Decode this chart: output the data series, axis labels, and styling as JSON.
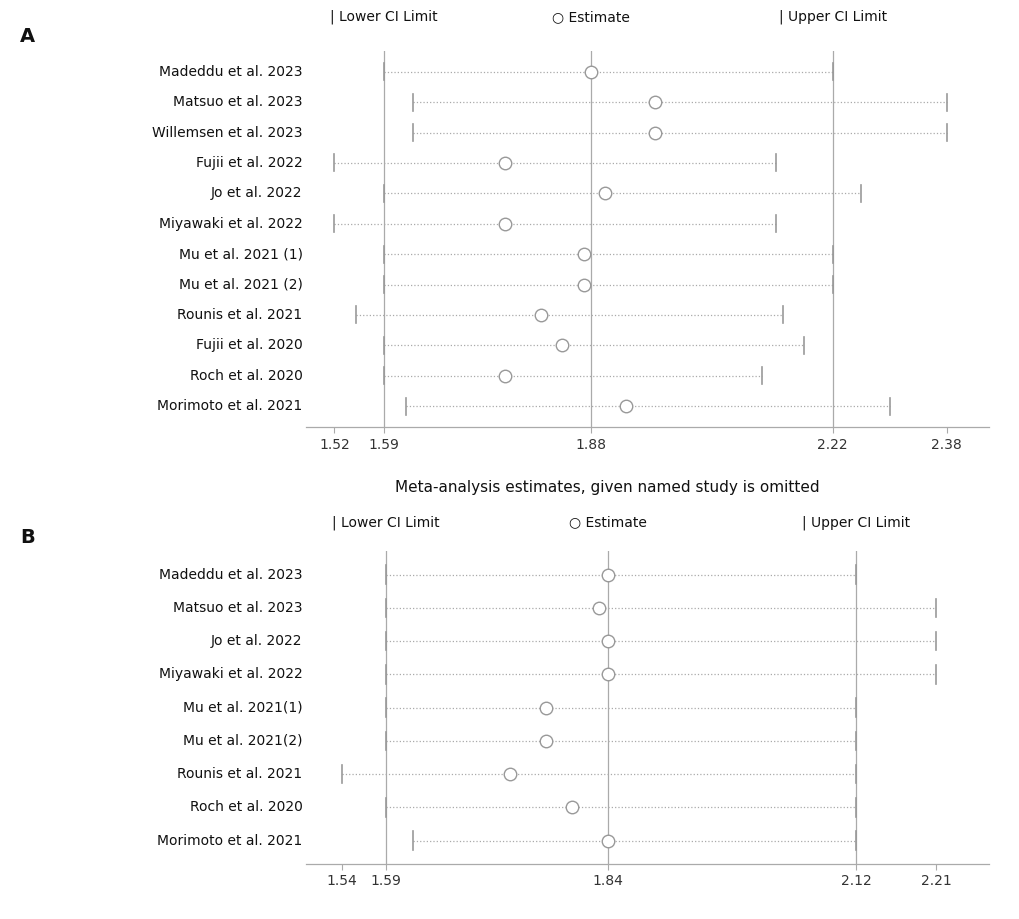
{
  "panel_A": {
    "title": "Meta-analysis estimates, given named study is omitted",
    "studies": [
      "Madeddu et al. 2023",
      "Matsuo et al. 2023",
      "Willemsen et al. 2023",
      "Fujii et al. 2022",
      "Jo et al. 2022",
      "Miyawaki et al. 2022",
      "Mu et al. 2021 (1)",
      "Mu et al. 2021 (2)",
      "Rounis et al. 2021",
      "Fujii et al. 2020",
      "Roch et al. 2020",
      "Morimoto et al. 2021"
    ],
    "lower_ci": [
      1.59,
      1.63,
      1.63,
      1.52,
      1.59,
      1.52,
      1.59,
      1.59,
      1.55,
      1.59,
      1.59,
      1.62
    ],
    "estimate": [
      1.88,
      1.97,
      1.97,
      1.76,
      1.9,
      1.76,
      1.87,
      1.87,
      1.81,
      1.84,
      1.76,
      1.93
    ],
    "upper_ci": [
      2.22,
      2.38,
      2.38,
      2.14,
      2.26,
      2.14,
      2.22,
      2.22,
      2.15,
      2.18,
      2.12,
      2.3
    ],
    "vline_lower": 1.59,
    "vline_estimate": 1.88,
    "vline_upper": 2.22,
    "xlim": [
      1.48,
      2.44
    ],
    "xticks": [
      1.52,
      1.59,
      1.88,
      2.22,
      2.38
    ]
  },
  "panel_B": {
    "title": "Meta-analysis estimates, given named study is omitted",
    "studies": [
      "Madeddu et al. 2023",
      "Matsuo et al. 2023",
      "Jo et al. 2022",
      "Miyawaki et al. 2022",
      "Mu et al. 2021(1)",
      "Mu et al. 2021(2)",
      "Rounis et al. 2021",
      "Roch et al. 2020",
      "Morimoto et al. 2021"
    ],
    "lower_ci": [
      1.59,
      1.59,
      1.59,
      1.59,
      1.59,
      1.59,
      1.54,
      1.59,
      1.62
    ],
    "estimate": [
      1.84,
      1.83,
      1.84,
      1.84,
      1.77,
      1.77,
      1.73,
      1.8,
      1.84
    ],
    "upper_ci": [
      2.12,
      2.21,
      2.21,
      2.21,
      2.12,
      2.12,
      2.12,
      2.12,
      2.12
    ],
    "vline_lower": 1.59,
    "vline_estimate": 1.84,
    "vline_upper": 2.12,
    "xlim": [
      1.5,
      2.27
    ],
    "xticks": [
      1.54,
      1.59,
      1.84,
      2.12,
      2.21
    ]
  },
  "label_A": "A",
  "label_B": "B",
  "legend_lower": "| Lower CI Limit",
  "legend_estimate": "○ Estimate",
  "legend_upper": "| Upper CI Limit",
  "dot_color": "white",
  "dot_edgecolor": "#999999",
  "line_color": "#999999",
  "vline_color": "#aaaaaa",
  "dotted_color": "#aaaaaa",
  "tick_color": "#333333",
  "text_color": "#111111",
  "bg_color": "white",
  "title_fontsize": 11,
  "legend_fontsize": 10,
  "study_fontsize": 10,
  "tick_fontsize": 10
}
